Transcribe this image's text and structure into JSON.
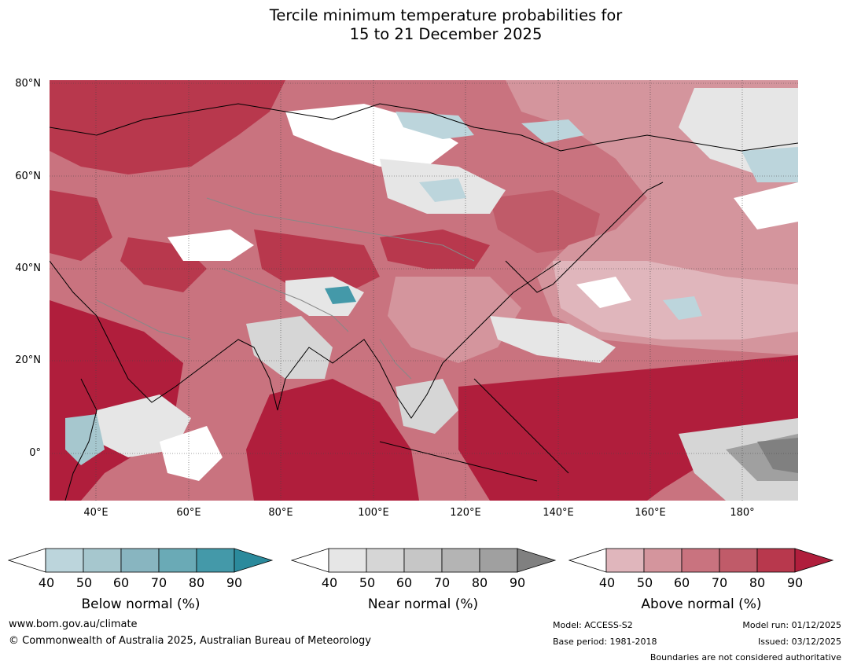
{
  "title": {
    "line1": "Tercile minimum temperature probabilities for",
    "line2": "15 to 21 December 2025"
  },
  "axes": {
    "lat_labels": [
      "80°N",
      "60°N",
      "40°N",
      "20°N",
      "0°"
    ],
    "lon_labels": [
      "40°E",
      "60°E",
      "80°E",
      "100°E",
      "120°E",
      "140°E",
      "160°E",
      "180°"
    ]
  },
  "legend": {
    "below": {
      "title": "Below normal (%)",
      "ticks": [
        "40",
        "50",
        "60",
        "70",
        "80",
        "90"
      ],
      "colors": [
        "#ffffff",
        "#bcd5dc",
        "#a6c7ce",
        "#88b5c0",
        "#6aaab6",
        "#4499a9",
        "#2b8a9c"
      ]
    },
    "near": {
      "title": "Near normal (%)",
      "ticks": [
        "40",
        "50",
        "60",
        "70",
        "80",
        "90"
      ],
      "colors": [
        "#ffffff",
        "#e6e6e6",
        "#d6d6d6",
        "#c6c6c6",
        "#b4b4b4",
        "#a0a0a0",
        "#808080"
      ]
    },
    "above": {
      "title": "Above normal (%)",
      "ticks": [
        "40",
        "50",
        "60",
        "70",
        "80",
        "90"
      ],
      "colors": [
        "#ffffff",
        "#e0b6bc",
        "#d4959d",
        "#c9737f",
        "#c05b69",
        "#b8384d",
        "#b01e3c"
      ]
    }
  },
  "footer": {
    "website": "www.bom.gov.au/climate",
    "copyright": "© Commonwealth of Australia 2025, Australian Bureau of Meteorology",
    "model": "Model: ACCESS-S2",
    "base_period": "Base period: 1981-2018",
    "model_run": "Model run: 01/12/2025",
    "issued": "Issued: 03/12/2025",
    "disclaimer": "Boundaries are not considered authoritative"
  }
}
